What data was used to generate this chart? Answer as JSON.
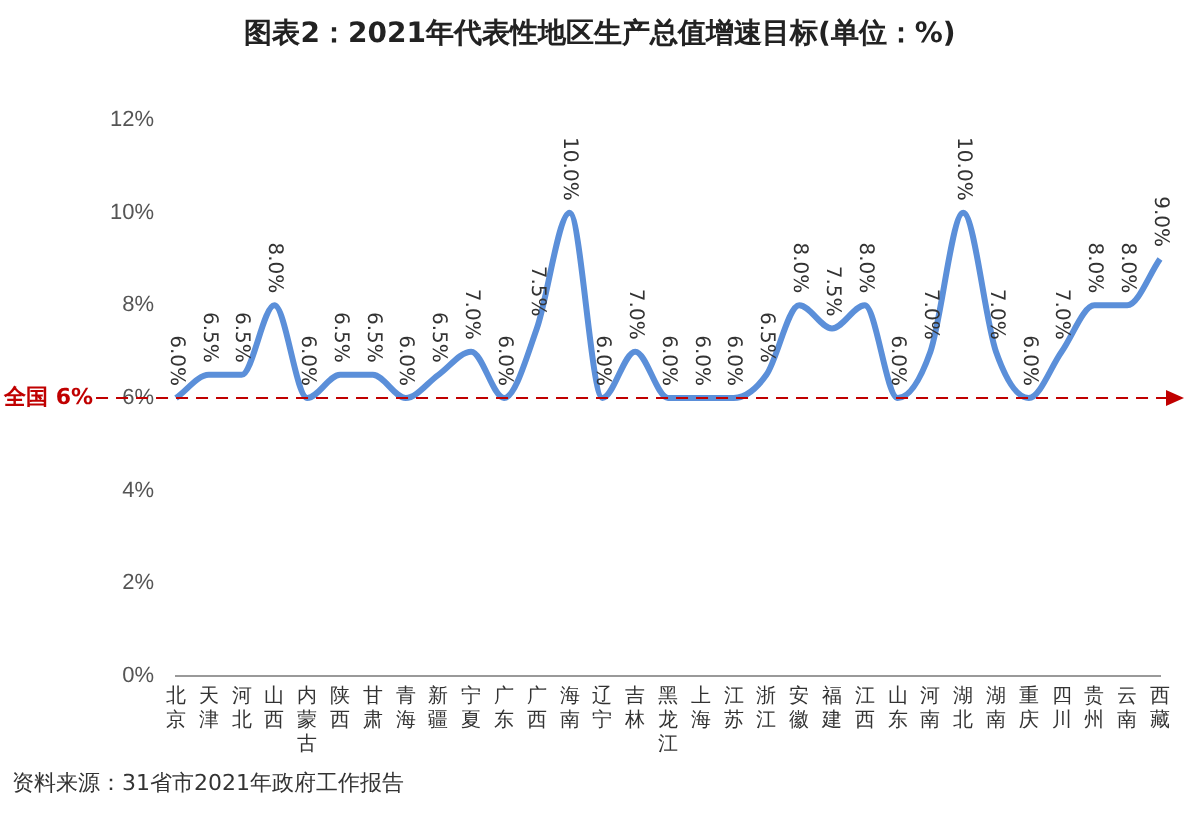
{
  "chart_data": {
    "type": "line",
    "title": "图表2：2021年代表性地区生产总值增速目标(单位：%)",
    "categories": [
      "北京",
      "天津",
      "河北",
      "山西",
      "内蒙古",
      "陕西",
      "甘肃",
      "青海",
      "新疆",
      "宁夏",
      "广东",
      "广西",
      "海南",
      "辽宁",
      "吉林",
      "黑龙江",
      "上海",
      "江苏",
      "浙江",
      "安徽",
      "福建",
      "江西",
      "山东",
      "河南",
      "湖北",
      "湖南",
      "重庆",
      "四川",
      "贵州",
      "云南",
      "西藏"
    ],
    "values": [
      6.0,
      6.5,
      6.5,
      8.0,
      6.0,
      6.5,
      6.5,
      6.0,
      6.5,
      7.0,
      6.0,
      7.5,
      10.0,
      6.0,
      7.0,
      6.0,
      6.0,
      6.0,
      6.5,
      8.0,
      7.5,
      8.0,
      6.0,
      7.0,
      10.0,
      7.0,
      6.0,
      7.0,
      8.0,
      8.0,
      9.0
    ],
    "value_labels": [
      "6.0%",
      "6.5%",
      "6.5%",
      "8.0%",
      "6.0%",
      "6.5%",
      "6.5%",
      "6.0%",
      "6.5%",
      "7.0%",
      "6.0%",
      "7.5%",
      "10.0%",
      "6.0%",
      "7.0%",
      "6.0%",
      "6.0%",
      "6.0%",
      "6.5%",
      "8.0%",
      "7.5%",
      "8.0%",
      "6.0%",
      "7.0%",
      "10.0%",
      "7.0%",
      "6.0%",
      "7.0%",
      "8.0%",
      "8.0%",
      "9.0%"
    ],
    "color": "#5b8fd9",
    "ylim": [
      0,
      12
    ],
    "yticks": [
      {
        "value": 0,
        "label": "0%"
      },
      {
        "value": 2,
        "label": "2%"
      },
      {
        "value": 4,
        "label": "4%"
      },
      {
        "value": 6,
        "label": "6%"
      },
      {
        "value": 8,
        "label": "8%"
      },
      {
        "value": 10,
        "label": "10%"
      },
      {
        "value": 12,
        "label": "12%"
      }
    ],
    "ref_lines": [
      {
        "axis": "y",
        "value": 6,
        "label": "全国 6%",
        "color": "#c00000",
        "line_style": "dashed"
      }
    ],
    "annotations": [
      "资料来源：31省市2021年政府工作报告"
    ],
    "grid": false,
    "legend": false,
    "marker": "none",
    "line_style": "solid"
  }
}
